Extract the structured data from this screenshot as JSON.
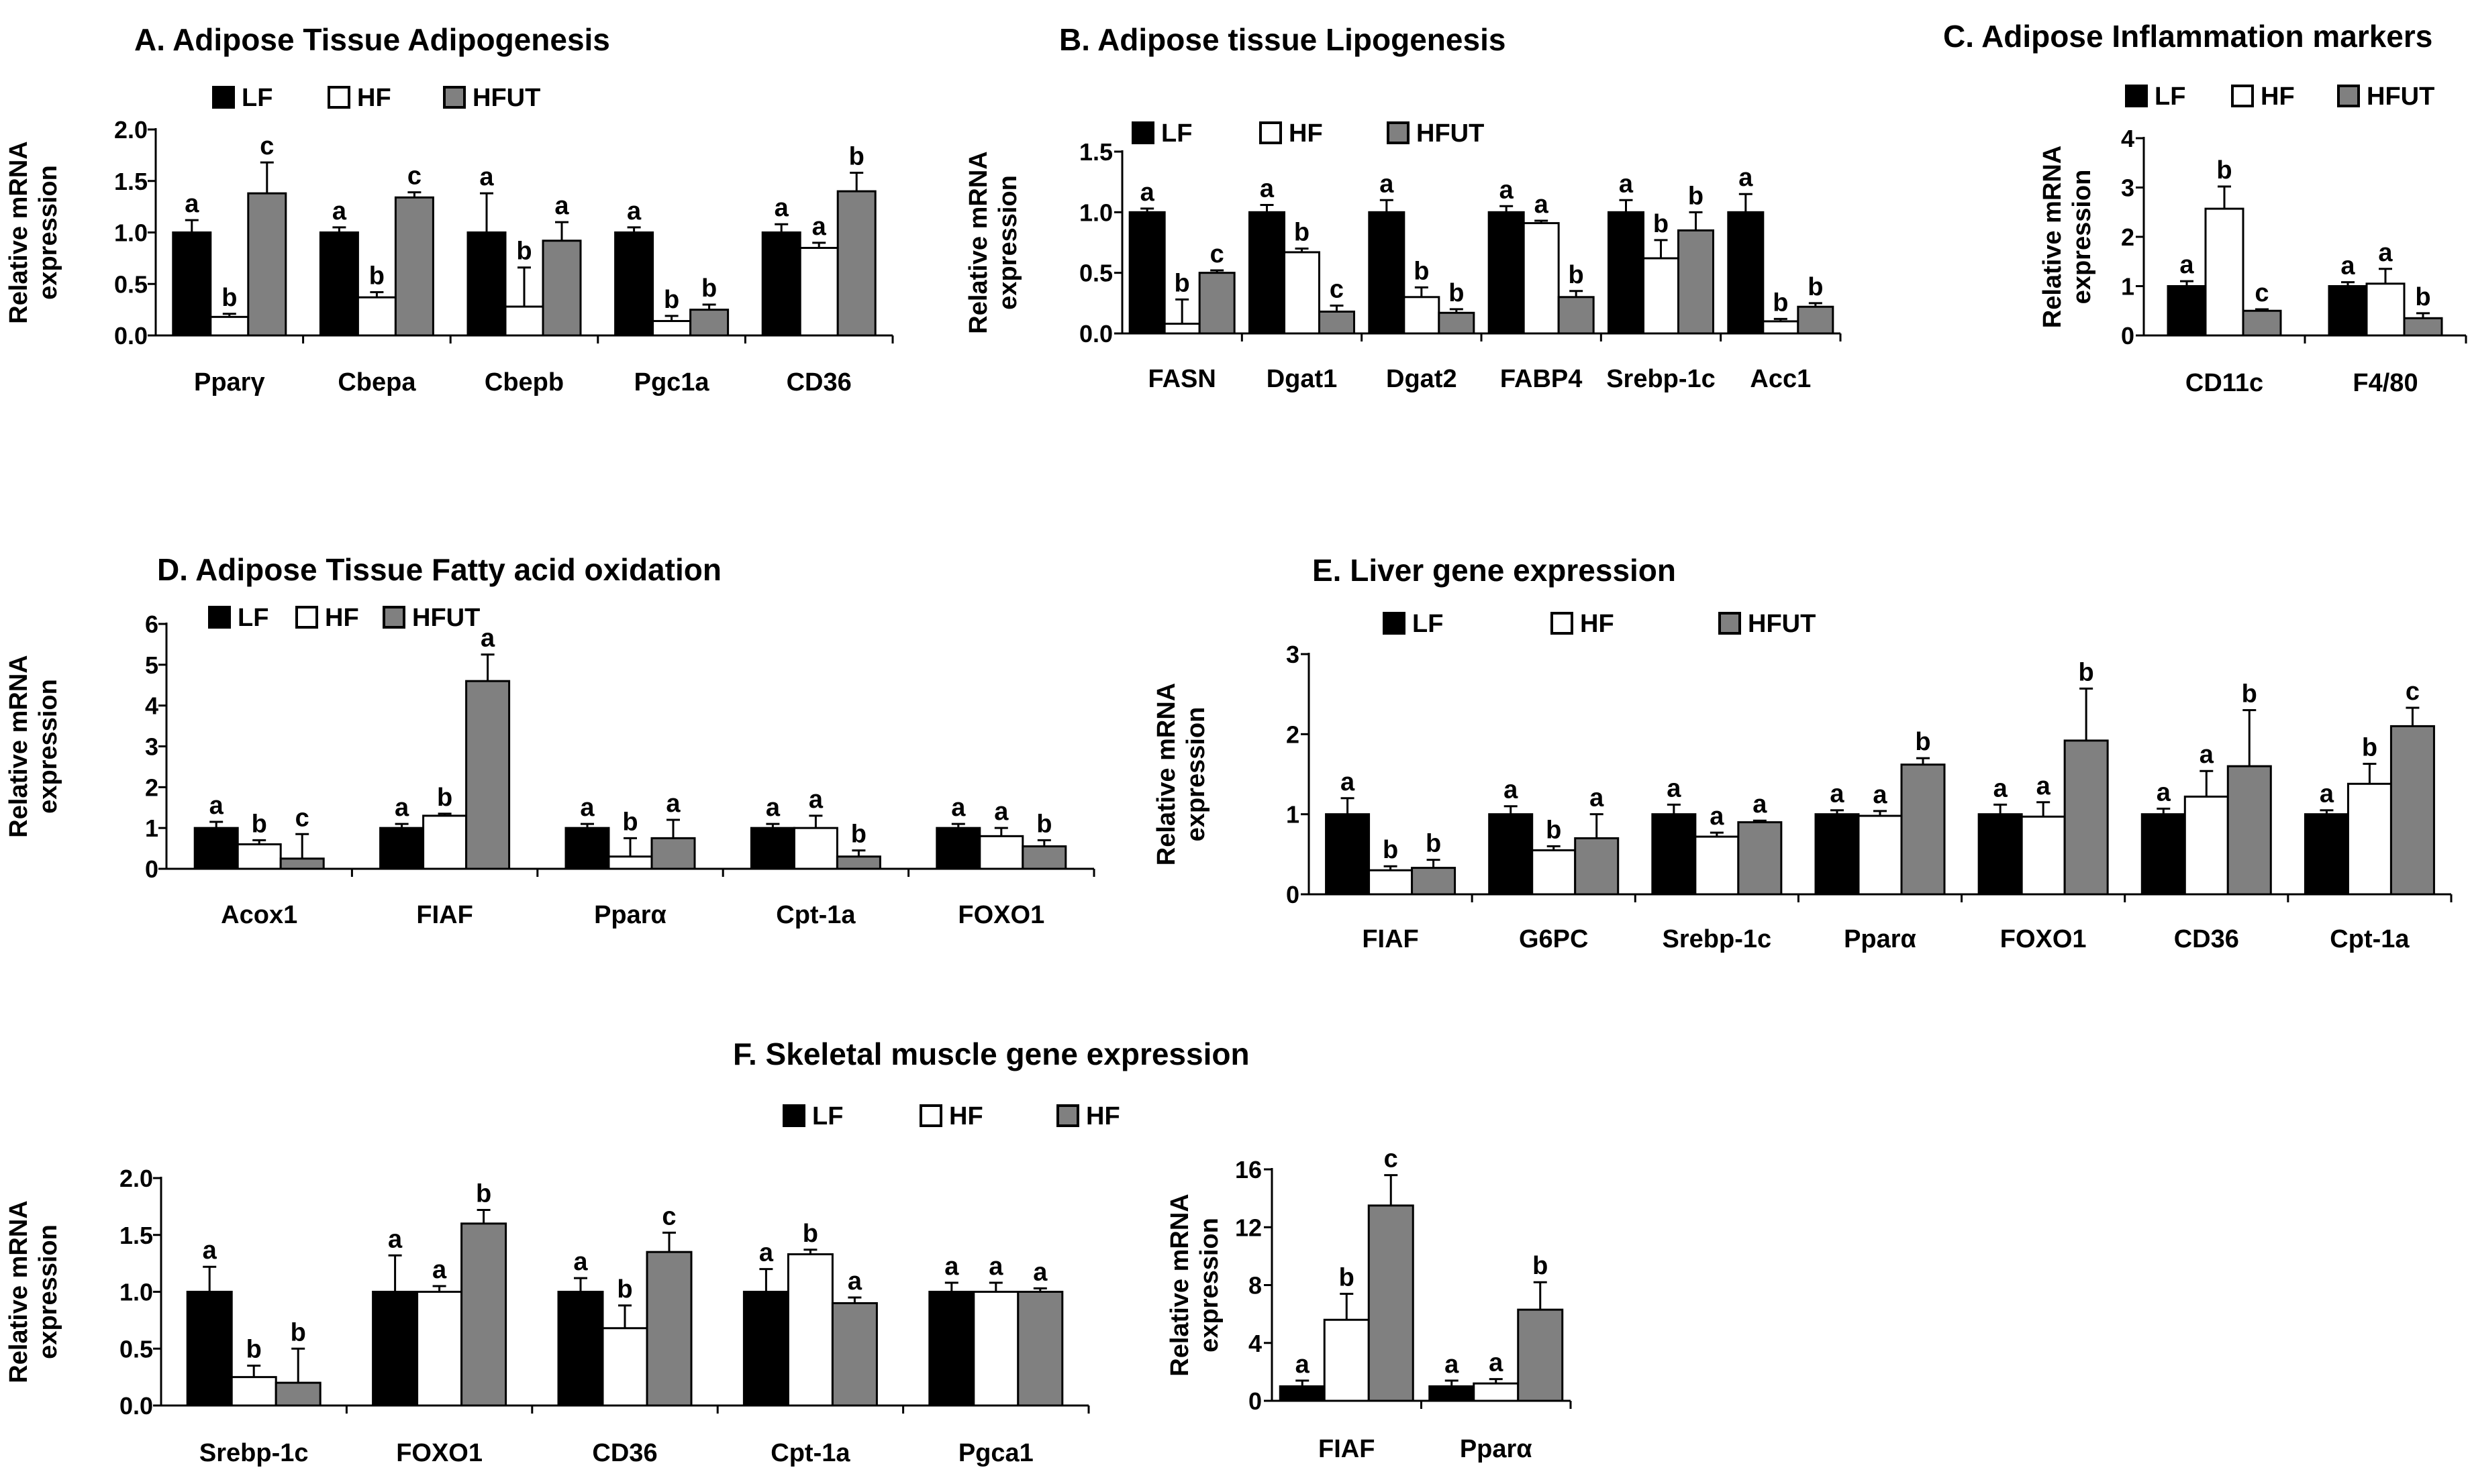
{
  "chart_data": [
    {
      "id": "A",
      "type": "bar",
      "title": "A. Adipose Tissue Adipogenesis",
      "ylabel": [
        "Relative mRNA",
        "expression"
      ],
      "ylim": [
        0,
        2.0
      ],
      "yticks": [
        "0.0",
        "0.5",
        "1.0",
        "1.5",
        "2.0"
      ],
      "ytick_values": [
        0,
        0.5,
        1.0,
        1.5,
        2.0
      ],
      "categories": [
        "Pparγ",
        "Cbepa",
        "Cbepb",
        "Pgc1a",
        "CD36"
      ],
      "legend": [
        "LF",
        "HF",
        "HFUT"
      ],
      "colors": [
        "#000000",
        "#ffffff",
        "#808080"
      ],
      "series": [
        {
          "name": "LF",
          "values": [
            1.0,
            1.0,
            1.0,
            1.0,
            1.0
          ],
          "errors": [
            0.12,
            0.05,
            0.38,
            0.05,
            0.08
          ],
          "labels": [
            "a",
            "a",
            "a",
            "a",
            "a"
          ]
        },
        {
          "name": "HF",
          "values": [
            0.18,
            0.37,
            0.28,
            0.14,
            0.85
          ],
          "errors": [
            0.03,
            0.05,
            0.38,
            0.05,
            0.05
          ],
          "labels": [
            "b",
            "b",
            "b",
            "b",
            "a"
          ]
        },
        {
          "name": "HFUT",
          "values": [
            1.38,
            1.34,
            0.92,
            0.25,
            1.4
          ],
          "errors": [
            0.3,
            0.05,
            0.18,
            0.05,
            0.18
          ],
          "labels": [
            "c",
            "c",
            "a",
            "b",
            "b"
          ]
        }
      ]
    },
    {
      "id": "B",
      "type": "bar",
      "title": "B. Adipose tissue Lipogenesis",
      "ylabel": [
        "Relative  mRNA",
        "expression"
      ],
      "ylim": [
        0,
        1.5
      ],
      "yticks": [
        "0.0",
        "0.5",
        "1.0",
        "1.5"
      ],
      "ytick_values": [
        0,
        0.5,
        1.0,
        1.5
      ],
      "categories": [
        "FASN",
        "Dgat1",
        "Dgat2",
        "FABP4",
        "Srebp-1c",
        "Acc1"
      ],
      "legend": [
        "LF",
        "HF",
        "HFUT"
      ],
      "colors": [
        "#000000",
        "#ffffff",
        "#808080"
      ],
      "series": [
        {
          "name": "LF",
          "values": [
            1.0,
            1.0,
            1.0,
            1.0,
            1.0,
            1.0
          ],
          "errors": [
            0.03,
            0.06,
            0.1,
            0.05,
            0.1,
            0.15
          ],
          "labels": [
            "a",
            "a",
            "a",
            "a",
            "a",
            "a"
          ]
        },
        {
          "name": "HF",
          "values": [
            0.08,
            0.67,
            0.3,
            0.91,
            0.62,
            0.1
          ],
          "errors": [
            0.2,
            0.03,
            0.08,
            0.02,
            0.15,
            0.02
          ],
          "labels": [
            "b",
            "b",
            "b",
            "a",
            "b",
            "b"
          ]
        },
        {
          "name": "HFUT",
          "values": [
            0.5,
            0.18,
            0.17,
            0.3,
            0.85,
            0.22
          ],
          "errors": [
            0.02,
            0.05,
            0.03,
            0.05,
            0.15,
            0.03
          ],
          "labels": [
            "c",
            "c",
            "b",
            "b",
            "b",
            "b"
          ]
        }
      ]
    },
    {
      "id": "C",
      "type": "bar",
      "title": "C. Adipose Inflammation markers",
      "ylabel": [
        "Relative mRNA",
        "expression"
      ],
      "ylim": [
        0,
        4
      ],
      "yticks": [
        "0",
        "1",
        "2",
        "3",
        "4"
      ],
      "ytick_values": [
        0,
        1,
        2,
        3,
        4
      ],
      "categories": [
        "CD11c",
        "F4/80"
      ],
      "legend": [
        "LF",
        "HF",
        "HFUT"
      ],
      "colors": [
        "#000000",
        "#ffffff",
        "#808080"
      ],
      "series": [
        {
          "name": "LF",
          "values": [
            1.0,
            1.0
          ],
          "errors": [
            0.1,
            0.08
          ],
          "labels": [
            "a",
            "a"
          ]
        },
        {
          "name": "HF",
          "values": [
            2.57,
            1.05
          ],
          "errors": [
            0.45,
            0.3
          ],
          "labels": [
            "b",
            "a"
          ]
        },
        {
          "name": "HFUT",
          "values": [
            0.5,
            0.35
          ],
          "errors": [
            0.03,
            0.1
          ],
          "labels": [
            "c",
            "b"
          ]
        }
      ]
    },
    {
      "id": "D",
      "type": "bar",
      "title": "D. Adipose Tissue Fatty acid oxidation",
      "ylabel": [
        "Relative mRNA",
        "expression"
      ],
      "ylim": [
        0,
        6
      ],
      "yticks": [
        "0",
        "1",
        "2",
        "3",
        "4",
        "5",
        "6"
      ],
      "ytick_values": [
        0,
        1,
        2,
        3,
        4,
        5,
        6
      ],
      "categories": [
        "Acox1",
        "FIAF",
        "Pparα",
        "Cpt-1a",
        "FOXO1"
      ],
      "legend": [
        "LF",
        "HF",
        "HFUT"
      ],
      "colors": [
        "#000000",
        "#ffffff",
        "#808080"
      ],
      "series": [
        {
          "name": "LF",
          "values": [
            1.0,
            1.0,
            1.0,
            1.0,
            1.0
          ],
          "errors": [
            0.15,
            0.1,
            0.1,
            0.1,
            0.1
          ],
          "labels": [
            "a",
            "a",
            "a",
            "a",
            "a"
          ]
        },
        {
          "name": "HF",
          "values": [
            0.6,
            1.3,
            0.3,
            1.0,
            0.8
          ],
          "errors": [
            0.1,
            0.05,
            0.45,
            0.3,
            0.2
          ],
          "labels": [
            "b",
            "b",
            "b",
            "a",
            "a"
          ]
        },
        {
          "name": "HFUT",
          "values": [
            0.25,
            4.6,
            0.75,
            0.3,
            0.55
          ],
          "errors": [
            0.6,
            0.65,
            0.45,
            0.15,
            0.15
          ],
          "labels": [
            "c",
            "a",
            "a",
            "b",
            "b"
          ]
        }
      ]
    },
    {
      "id": "E",
      "type": "bar",
      "title": "E. Liver gene expression",
      "ylabel": [
        "Relative mRNA",
        "expression"
      ],
      "ylim": [
        0,
        3
      ],
      "yticks": [
        "0",
        "1",
        "2",
        "3"
      ],
      "ytick_values": [
        0,
        1,
        2,
        3
      ],
      "categories": [
        "FIAF",
        "G6PC",
        "Srebp-1c",
        "Pparα",
        "FOXO1",
        "CD36",
        "Cpt-1a"
      ],
      "legend": [
        "LF",
        "HF",
        "HFUT"
      ],
      "colors": [
        "#000000",
        "#ffffff",
        "#808080"
      ],
      "series": [
        {
          "name": "LF",
          "values": [
            1.0,
            1.0,
            1.0,
            1.0,
            1.0,
            1.0,
            1.0
          ],
          "errors": [
            0.2,
            0.1,
            0.12,
            0.05,
            0.12,
            0.07,
            0.05
          ],
          "labels": [
            "a",
            "a",
            "a",
            "a",
            "a",
            "a",
            "a"
          ]
        },
        {
          "name": "HF",
          "values": [
            0.3,
            0.55,
            0.72,
            0.98,
            0.97,
            1.22,
            1.38
          ],
          "errors": [
            0.05,
            0.05,
            0.05,
            0.06,
            0.18,
            0.32,
            0.25
          ],
          "labels": [
            "b",
            "b",
            "a",
            "a",
            "a",
            "a",
            "b"
          ]
        },
        {
          "name": "HFUT",
          "values": [
            0.33,
            0.7,
            0.9,
            1.62,
            1.92,
            1.6,
            2.1
          ],
          "errors": [
            0.1,
            0.3,
            0.02,
            0.08,
            0.65,
            0.7,
            0.23
          ],
          "labels": [
            "b",
            "a",
            "a",
            "b",
            "b",
            "b",
            "c"
          ]
        }
      ]
    },
    {
      "id": "F1",
      "type": "bar",
      "title": "F. Skeletal muscle  gene expression",
      "ylabel": [
        "Relative mRNA",
        "expression"
      ],
      "ylim": [
        0,
        2.0
      ],
      "yticks": [
        "0.0",
        "0.5",
        "1.0",
        "1.5",
        "2.0"
      ],
      "ytick_values": [
        0,
        0.5,
        1.0,
        1.5,
        2.0
      ],
      "categories": [
        "Srebp-1c",
        "FOXO1",
        "CD36",
        "Cpt-1a",
        "Pgca1"
      ],
      "legend": [
        "LF",
        "HF",
        "HF"
      ],
      "colors": [
        "#000000",
        "#ffffff",
        "#808080"
      ],
      "series": [
        {
          "name": "LF",
          "values": [
            1.0,
            1.0,
            1.0,
            1.0,
            1.0
          ],
          "errors": [
            0.22,
            0.32,
            0.12,
            0.2,
            0.08
          ],
          "labels": [
            "a",
            "a",
            "a",
            "a",
            "a"
          ]
        },
        {
          "name": "HF",
          "values": [
            0.25,
            1.0,
            0.68,
            1.33,
            1.0
          ],
          "errors": [
            0.1,
            0.05,
            0.2,
            0.04,
            0.08
          ],
          "labels": [
            "b",
            "a",
            "b",
            "b",
            "a"
          ]
        },
        {
          "name": "HF",
          "values": [
            0.2,
            1.6,
            1.35,
            0.9,
            1.0
          ],
          "errors": [
            0.3,
            0.12,
            0.17,
            0.05,
            0.03
          ],
          "labels": [
            "b",
            "b",
            "c",
            "a",
            "a"
          ]
        }
      ]
    },
    {
      "id": "F2",
      "type": "bar",
      "title": "",
      "ylabel": [
        "Relative mRNA",
        "expression"
      ],
      "ylim": [
        0,
        16
      ],
      "yticks": [
        "0",
        "4",
        "8",
        "12",
        "16"
      ],
      "ytick_values": [
        0,
        4,
        8,
        12,
        16
      ],
      "categories": [
        "FIAF",
        "Pparα"
      ],
      "legend": [],
      "colors": [
        "#000000",
        "#ffffff",
        "#808080"
      ],
      "series": [
        {
          "values": [
            1.0,
            1.0
          ],
          "errors": [
            0.4,
            0.4
          ],
          "labels": [
            "a",
            "a"
          ]
        },
        {
          "values": [
            5.6,
            1.2
          ],
          "errors": [
            1.8,
            0.3
          ],
          "labels": [
            "b",
            "a"
          ]
        },
        {
          "values": [
            13.5,
            6.3
          ],
          "errors": [
            2.1,
            1.9
          ],
          "labels": [
            "c",
            "b"
          ]
        }
      ]
    }
  ]
}
